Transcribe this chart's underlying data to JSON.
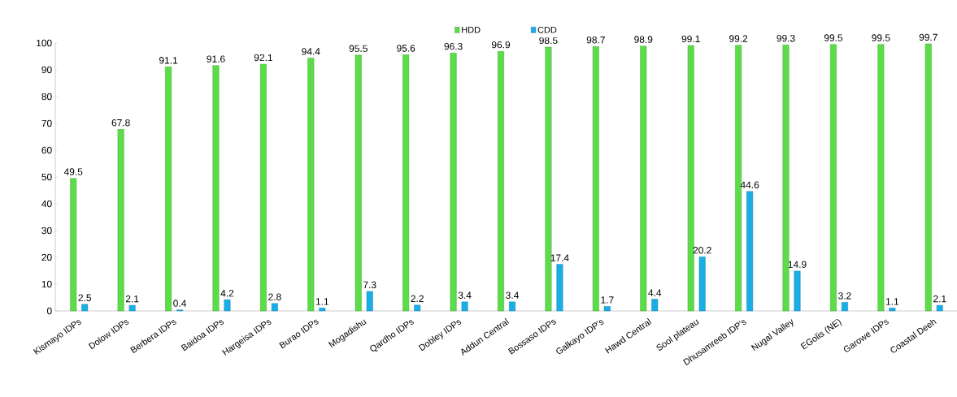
{
  "chart_data": {
    "type": "bar",
    "categories": [
      "Kismayo IDPs",
      "Dolow IDPs",
      "Berbera IDPs",
      "Baidoa IDPs",
      "Hargeisa IDPs",
      "Burao IDPs",
      "Mogadishu",
      "Qardho IDPs",
      "Dobley IDPs",
      "Addun Central",
      "Bossaso IDPs",
      "Galkayo IDP's",
      "Hawd Central",
      "Sool plateau",
      "Dhusamreeb IDP's",
      "Nugal Valley",
      "EGolis (NE)",
      "Garowe IDPs",
      "Coastal Deeh"
    ],
    "series": [
      {
        "name": "HDD",
        "color": "#5bdc48",
        "values": [
          49.5,
          67.8,
          91.1,
          91.6,
          92.1,
          94.4,
          95.5,
          95.6,
          96.3,
          96.9,
          98.5,
          98.7,
          98.9,
          99.1,
          99.2,
          99.3,
          99.5,
          99.5,
          99.7
        ]
      },
      {
        "name": "CDD",
        "color": "#19aee6",
        "values": [
          2.5,
          2.1,
          0.4,
          4.2,
          2.8,
          1.1,
          7.3,
          2.2,
          3.4,
          3.4,
          17.4,
          1.7,
          4.4,
          20.2,
          44.6,
          14.9,
          3.2,
          1.1,
          2.1
        ]
      }
    ],
    "ylim": [
      0,
      100
    ],
    "yticks": [
      0,
      10,
      20,
      30,
      40,
      50,
      60,
      70,
      80,
      90,
      100
    ],
    "grid": false,
    "legend": "top",
    "data_labels": true
  }
}
